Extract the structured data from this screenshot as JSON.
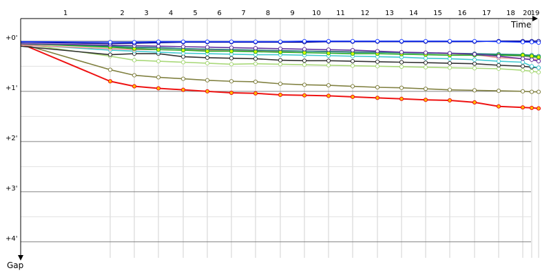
{
  "chart_data": {
    "type": "line",
    "x_label": "Time",
    "y_label": "Gap",
    "categories": [
      "1",
      "2",
      "3",
      "4",
      "5",
      "6",
      "7",
      "8",
      "9",
      "10",
      "11",
      "12",
      "13",
      "14",
      "15",
      "16",
      "17",
      "18",
      "20",
      "19"
    ],
    "x": [
      0,
      130,
      165,
      200,
      236,
      271,
      306,
      341,
      377,
      412,
      447,
      482,
      518,
      553,
      588,
      623,
      659,
      694,
      729,
      742,
      752
    ],
    "xlim": [
      0,
      770
    ],
    "ylim": [
      -0.45,
      4.4
    ],
    "yticks": [
      {
        "value": 0,
        "label": "+0'"
      },
      {
        "value": 1,
        "label": "+1'"
      },
      {
        "value": 2,
        "label": "+2'"
      },
      {
        "value": 3,
        "label": "+3'"
      },
      {
        "value": 4,
        "label": "+4'"
      }
    ],
    "minor_yticks": [
      0.5,
      1.5,
      2.5,
      3.5
    ],
    "grid": true,
    "series": [
      {
        "color": "#ee1111",
        "marker_color": "#ffbb00",
        "values": [
          0.05,
          0.8,
          0.9,
          0.94,
          0.97,
          1.0,
          1.03,
          1.04,
          1.07,
          1.08,
          1.09,
          1.11,
          1.13,
          1.15,
          1.17,
          1.18,
          1.22,
          1.3,
          1.32,
          1.33,
          1.34
        ]
      },
      {
        "color": "#808040",
        "marker_color": "#ffffff",
        "values": [
          0.05,
          0.57,
          0.68,
          0.72,
          0.75,
          0.78,
          0.8,
          0.81,
          0.85,
          0.87,
          0.88,
          0.9,
          0.92,
          0.93,
          0.95,
          0.97,
          0.98,
          0.99,
          1.0,
          1.01,
          1.01
        ]
      },
      {
        "color": "#a8d878",
        "marker_color": "#ffffff",
        "values": [
          0.05,
          0.3,
          0.38,
          0.4,
          0.42,
          0.44,
          0.46,
          0.45,
          0.46,
          0.47,
          0.48,
          0.49,
          0.5,
          0.51,
          0.52,
          0.53,
          0.54,
          0.55,
          0.58,
          0.6,
          0.62
        ]
      },
      {
        "color": "#303030",
        "marker_color": "#ffffff",
        "values": [
          0.1,
          0.27,
          0.25,
          0.25,
          0.31,
          0.33,
          0.34,
          0.35,
          0.38,
          0.39,
          0.39,
          0.4,
          0.41,
          0.42,
          0.43,
          0.44,
          0.45,
          0.48,
          0.5,
          0.52,
          0.53
        ]
      },
      {
        "color": "#40c8d0",
        "marker_color": "#ffffff",
        "values": [
          0.07,
          0.18,
          0.2,
          0.22,
          0.24,
          0.25,
          0.26,
          0.27,
          0.27,
          0.28,
          0.29,
          0.3,
          0.31,
          0.32,
          0.34,
          0.35,
          0.37,
          0.4,
          0.42,
          0.5,
          0.53
        ]
      },
      {
        "color": "#e89090",
        "marker_color": "#ffffff",
        "values": [
          0.08,
          0.15,
          0.17,
          0.17,
          0.18,
          0.18,
          0.18,
          0.19,
          0.2,
          0.2,
          0.21,
          0.22,
          0.22,
          0.23,
          0.24,
          0.25,
          0.27,
          0.33,
          0.35,
          0.36,
          0.37
        ]
      },
      {
        "color": "#909090",
        "marker_color": "#ffffff",
        "values": [
          0.06,
          0.1,
          0.13,
          0.14,
          0.15,
          0.16,
          0.17,
          0.18,
          0.19,
          0.2,
          0.2,
          0.21,
          0.22,
          0.23,
          0.24,
          0.25,
          0.26,
          0.28,
          0.3,
          0.32,
          0.33
        ]
      },
      {
        "color": "#208080",
        "marker_color": "#ffffff",
        "values": [
          0.05,
          0.1,
          0.12,
          0.13,
          0.15,
          0.16,
          0.17,
          0.18,
          0.19,
          0.2,
          0.21,
          0.22,
          0.22,
          0.23,
          0.24,
          0.24,
          0.25,
          0.26,
          0.27,
          0.28,
          0.3
        ]
      },
      {
        "color": "#22aa22",
        "marker_color": "#ddff00",
        "values": [
          0.05,
          0.12,
          0.15,
          0.17,
          0.18,
          0.2,
          0.2,
          0.21,
          0.22,
          0.23,
          0.24,
          0.25,
          0.25,
          0.26,
          0.27,
          0.28,
          0.28,
          0.28,
          0.28,
          0.3,
          0.32
        ]
      },
      {
        "color": "#6030a0",
        "marker_color": "#ffffff",
        "values": [
          0.05,
          0.08,
          0.09,
          0.1,
          0.11,
          0.12,
          0.13,
          0.14,
          0.15,
          0.16,
          0.17,
          0.18,
          0.2,
          0.22,
          0.23,
          0.24,
          0.26,
          0.3,
          0.35,
          0.37,
          0.4
        ]
      },
      {
        "color": "#000090",
        "marker_color": "#ffffff",
        "values": [
          0.02,
          0.05,
          0.04,
          0.03,
          0.02,
          0.02,
          0.02,
          0.02,
          0.02,
          0.02,
          0.01,
          0.01,
          0.01,
          0.01,
          0.01,
          0.01,
          0.01,
          0.0,
          0.0,
          0.0,
          0.0
        ]
      },
      {
        "color": "#2040ff",
        "marker_color": "#ffffff",
        "values": [
          0.01,
          0.02,
          0.02,
          0.01,
          0.01,
          0.01,
          0.01,
          0.01,
          0.01,
          0.0,
          0.0,
          0.0,
          0.0,
          0.0,
          0.0,
          0.0,
          0.0,
          0.01,
          0.02,
          0.02,
          0.03
        ]
      }
    ]
  }
}
